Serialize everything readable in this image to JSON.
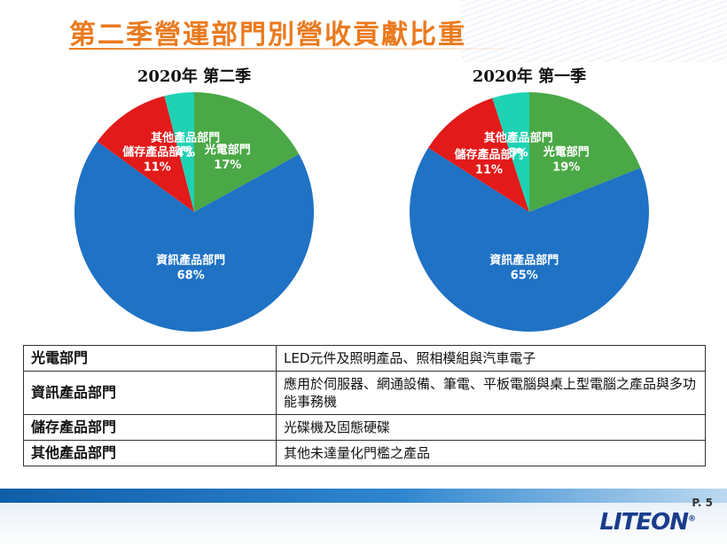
{
  "page": {
    "title": "第二季營運部門別營收貢獻比重",
    "page_number": "P. 5",
    "logo": "LITEON"
  },
  "chart_data": [
    {
      "type": "pie",
      "title": "2020年 第二季",
      "slices": [
        {
          "label": "光電部門",
          "value": 17,
          "value_label": "17%",
          "color": "#4aa846"
        },
        {
          "label": "資訊產品部門",
          "value": 68,
          "value_label": "68%",
          "color": "#1f72c4"
        },
        {
          "label": "儲存產品部門",
          "value": 11,
          "value_label": "11%",
          "color": "#e21a1a"
        },
        {
          "label": "其他產品部門",
          "value": 4,
          "value_label": "4%",
          "color": "#1ed2b4"
        }
      ]
    },
    {
      "type": "pie",
      "title": "2020年 第一季",
      "slices": [
        {
          "label": "光電部門",
          "value": 19,
          "value_label": "19%",
          "color": "#4aa846"
        },
        {
          "label": "資訊產品部門",
          "value": 65,
          "value_label": "65%",
          "color": "#1f72c4"
        },
        {
          "label": "儲存產品部門",
          "value": 11,
          "value_label": "11%",
          "color": "#e21a1a"
        },
        {
          "label": "其他產品部門",
          "value": 5,
          "value_label": "5%",
          "color": "#1ed2b4"
        }
      ]
    }
  ],
  "table": {
    "rows": [
      {
        "division": "光電部門",
        "description": "LED元件及照明產品、照相模組與汽車電子"
      },
      {
        "division": "資訊產品部門",
        "description": "應用於伺服器、網通設備、筆電、平板電腦與桌上型電腦之產品與多功能事務機"
      },
      {
        "division": "儲存產品部門",
        "description": "光碟機及固態硬碟"
      },
      {
        "division": "其他產品部門",
        "description": "其他未達量化門檻之產品"
      }
    ]
  }
}
